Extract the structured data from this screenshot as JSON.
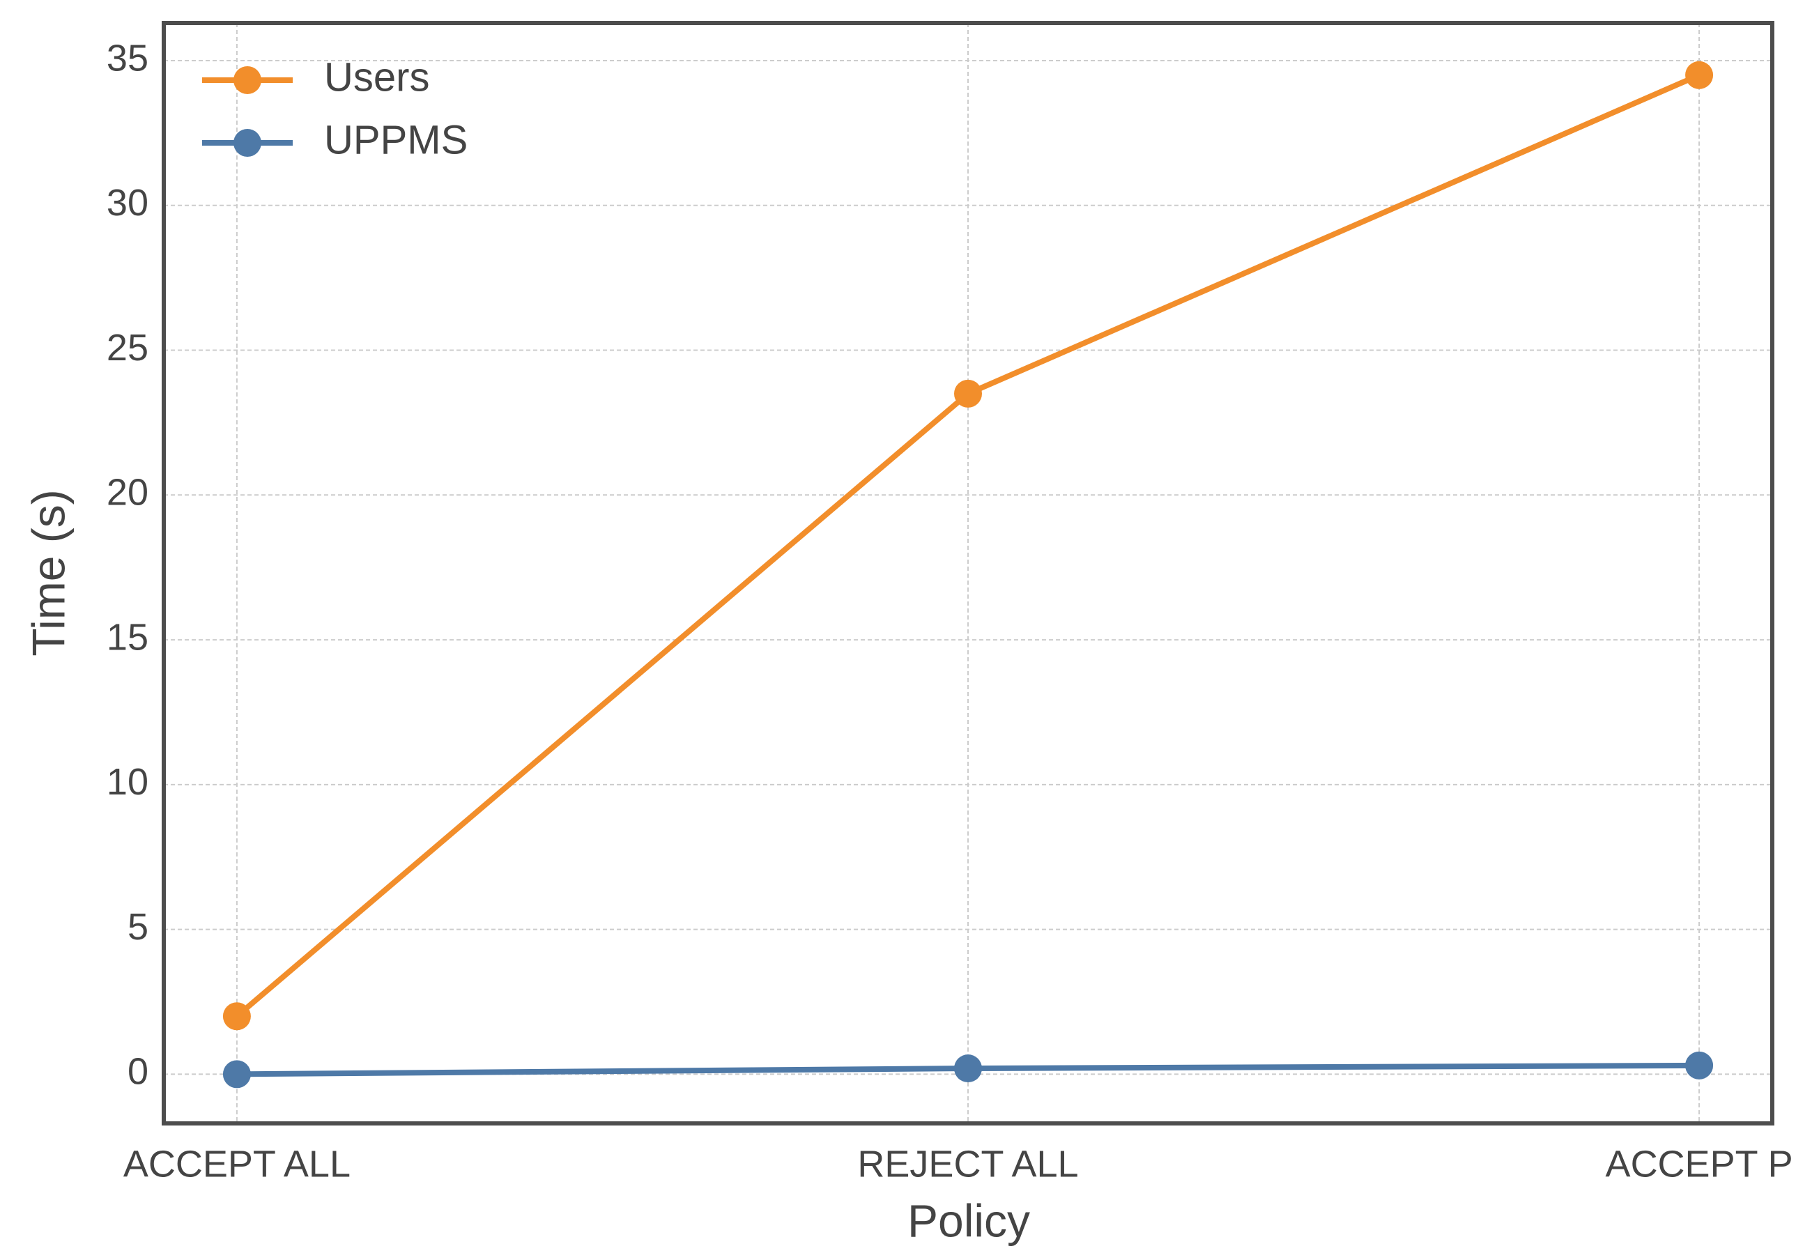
{
  "chart_data": {
    "type": "line",
    "x_label": "Policy",
    "y_label": "Time (s)",
    "categories": [
      "ACCEPT ALL",
      "REJECT ALL",
      "ACCEPT P"
    ],
    "series": [
      {
        "name": "Users",
        "color": "#f28e2b",
        "values": [
          2,
          23.5,
          34.5
        ]
      },
      {
        "name": "UPPMS",
        "color": "#4e79a7",
        "values": [
          0,
          0.2,
          0.3
        ]
      }
    ],
    "ylim": [
      -1.7,
      36.3
    ],
    "yticks": [
      0,
      5,
      10,
      15,
      20,
      25,
      30,
      35
    ],
    "grid": true,
    "legend": "upper left"
  }
}
